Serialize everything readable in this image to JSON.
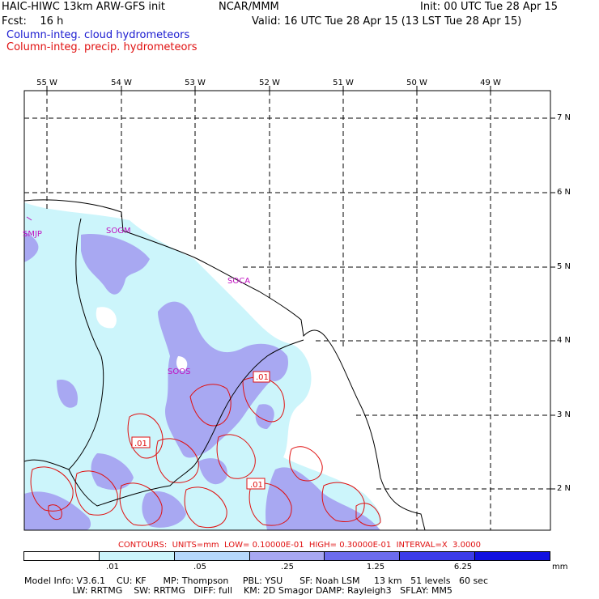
{
  "header": {
    "model": "HAIC-HIWC 13km ARW-GFS init",
    "org": "NCAR/MMM",
    "init": "Init: 00 UTC Tue 28 Apr 15",
    "fcst": "Fcst:    16 h",
    "valid": "Valid: 16 UTC Tue 28 Apr 15 (13 LST Tue 28 Apr 15)",
    "field_cloud": "Column-integ. cloud hydrometeors",
    "field_precip": "Column-integ. precip. hydrometeors"
  },
  "colors": {
    "cloud_label": "#1a1ad0",
    "precip_label": "#e01010",
    "fill_levels": [
      "#ffffff",
      "#ccf5fb",
      "#b6d8fb",
      "#a8a8f2",
      "#6c6cee",
      "#3c3ce8",
      "#1010e0"
    ]
  },
  "longitudes": [
    "55 W",
    "54 W",
    "53 W",
    "52 W",
    "51 W",
    "50 W",
    "49 W"
  ],
  "latitudes": [
    "7 N",
    "6 N",
    "5 N",
    "4 N",
    "3 N",
    "2 N"
  ],
  "stations": [
    "SMJP",
    "SOGM",
    "SOCA",
    "SOOS"
  ],
  "contour_labels": [
    ".01",
    ".01",
    ".01"
  ],
  "contour_info": "CONTOURS:  UNITS=mm  LOW= 0.10000E-01  HIGH= 0.30000E-01  INTERVAL=X  3.0000",
  "colorbar": {
    "ticks": [
      ".01",
      ".05",
      ".25",
      "1.25",
      "6.25"
    ],
    "units": "mm"
  },
  "model_info": {
    "line1": "Model Info: V3.6.1    CU: KF      MP: Thompson     PBL: YSU      SF: Noah LSM     13 km   51 levels   60 sec",
    "line2": "                 LW: RRTMG    SW: RRTMG   DIFF: full    KM: 2D Smagor DAMP: Rayleigh3   SFLAY: MM5"
  }
}
